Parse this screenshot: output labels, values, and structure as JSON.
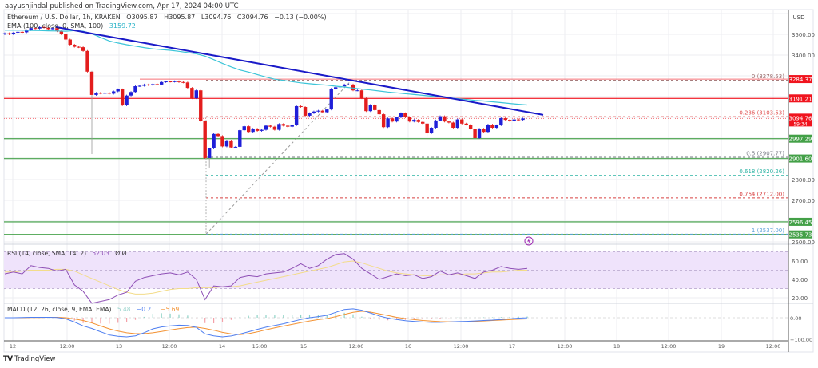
{
  "header": {
    "published": "aayushjindal published on TradingView.com, Apr 17, 2024 04:00 UTC"
  },
  "legend": {
    "symbol": "Ethereum / U.S. Dollar, 1h, KRAKEN",
    "open": "O3095.87",
    "high": "H3095.87",
    "low": "L3094.76",
    "close": "C3094.76",
    "change": "−0.13 (−0.00%)",
    "ema_label": "EMA (100, close, 0, SMA, 100)",
    "ema_value": "3159.72",
    "rsi_label": "RSI (14, close, SMA, 14, 2)",
    "rsi_value": "52.03",
    "rsi_extra": "Ø Ø",
    "macd_label": "MACD (12, 26, close, 9, EMA, EMA)",
    "macd_hist": "5.48",
    "macd_value": "−0.21",
    "macd_signal": "−5.69"
  },
  "footer": {
    "brand": "TradingView",
    "logo": "TV"
  },
  "colors": {
    "up": "#1f1fd8",
    "down": "#e31d1d",
    "trendline": "#1a1ac8",
    "ema": "#3cc5d8",
    "rsi": "#8e4fb5",
    "rsi_sma": "#f3dc8a",
    "macd": "#4f7ff0",
    "signal": "#f39233",
    "badge_red": "#f0141e",
    "badge_green": "#43a047"
  },
  "chart_data": {
    "type": "candlestick",
    "symbol": "ETHUSD",
    "interval": "1h",
    "currency": "USD",
    "price_axis": {
      "ticks": [
        "3500.00",
        "3400.00",
        "2800.00",
        "2700.00",
        "2500.00"
      ],
      "tick_values": [
        3500,
        3400,
        2800,
        2700,
        2500
      ],
      "range": [
        2480,
        3620
      ]
    },
    "time_axis": {
      "ticks": [
        "12",
        "12:00",
        "13",
        "12:00",
        "14",
        "15:00",
        "15",
        "12:00",
        "16",
        "12:00",
        "17",
        "12:00",
        "18",
        "12:00",
        "19",
        "12:00"
      ]
    },
    "first_open": 3500,
    "closes": [
      3505,
      3500,
      3508,
      3512,
      3510,
      3520,
      3530,
      3528,
      3535,
      3532,
      3525,
      3530,
      3515,
      3500,
      3475,
      3450,
      3440,
      3438,
      3420,
      3320,
      3208,
      3218,
      3215,
      3218,
      3214,
      3225,
      3235,
      3158,
      3205,
      3222,
      3250,
      3252,
      3258,
      3255,
      3260,
      3258,
      3270,
      3273,
      3272,
      3274,
      3270,
      3268,
      3242,
      3192,
      3230,
      3081,
      2904,
      2950,
      3020,
      3010,
      2960,
      2985,
      2955,
      2958,
      3038,
      3057,
      3030,
      3045,
      3035,
      3040,
      3060,
      3055,
      3040,
      3068,
      3060,
      3055,
      3062,
      3154,
      3150,
      3108,
      3120,
      3128,
      3132,
      3125,
      3138,
      3238,
      3245,
      3250,
      3258,
      3258,
      3230,
      3230,
      3192,
      3130,
      3160,
      3135,
      3115,
      3053,
      3095,
      3080,
      3100,
      3120,
      3100,
      3080,
      3088,
      3078,
      3070,
      3023,
      3050,
      3085,
      3105,
      3080,
      3075,
      3050,
      3090,
      3070,
      3065,
      3045,
      3000,
      3045,
      3030,
      3065,
      3050,
      3062,
      3096,
      3088,
      3082,
      3090,
      3088,
      3094.76
    ],
    "low_overrides": {
      "20": 2923,
      "47": 2858,
      "97": 3010,
      "108": 2990
    },
    "ema100": [
      3520,
      3520,
      3520,
      3519,
      3518,
      3517,
      3516,
      3515,
      3518,
      3515,
      3503,
      3485,
      3468,
      3458,
      3450,
      3443,
      3436,
      3430,
      3426,
      3423,
      3418,
      3412,
      3406,
      3395,
      3378,
      3360,
      3343,
      3328,
      3318,
      3306,
      3294,
      3284,
      3278,
      3272,
      3266,
      3262,
      3258,
      3255,
      3250,
      3246,
      3241,
      3236,
      3232,
      3227,
      3222,
      3218,
      3214,
      3210,
      3206,
      3202,
      3198,
      3194,
      3190,
      3186,
      3182,
      3179,
      3175,
      3171,
      3167,
      3163,
      3159.72
    ],
    "trendline": [
      3535,
      3112
    ],
    "levels": [
      {
        "price": 3284.37,
        "label": "3284.37",
        "kind": "red",
        "partial": true
      },
      {
        "price": 3191.21,
        "label": "3191.21",
        "kind": "red"
      },
      {
        "price": 2997.29,
        "label": "2997.29",
        "kind": "green"
      },
      {
        "price": 2901.6,
        "label": "2901.60",
        "kind": "green"
      },
      {
        "price": 2596.45,
        "label": "2596.45",
        "kind": "green"
      },
      {
        "price": 2535.73,
        "label": "2535.73",
        "kind": "green"
      }
    ],
    "last_price": {
      "price": 3094.76,
      "label": "3094.76",
      "countdown": "59:34"
    },
    "fib": [
      {
        "level": "0",
        "price": 3278.53,
        "label": "0 (3278.53)",
        "color": "#9a6a6a"
      },
      {
        "level": "0.236",
        "price": 3103.53,
        "label": "0.236 (3103.53)",
        "color": "#e05050"
      },
      {
        "level": "0.5",
        "price": 2907.77,
        "label": "0.5 (2907.77)",
        "color": "#787b86"
      },
      {
        "level": "0.618",
        "price": 2820.26,
        "label": "0.618 (2820.26)",
        "color": "#2bb3a3"
      },
      {
        "level": "0.764",
        "price": 2712.0,
        "label": "0.764 (2712.00)",
        "color": "#d84040"
      },
      {
        "level": "1",
        "price": 2537.0,
        "label": "1 (2537.00)",
        "color": "#5aa0d8"
      }
    ],
    "rsi": {
      "axis_ticks": [
        "60.00",
        "40.00",
        "20.00"
      ],
      "tick_values": [
        60,
        40,
        20
      ],
      "band": [
        30,
        70
      ],
      "values": [
        46,
        48,
        46,
        55,
        53,
        52,
        49,
        51,
        34,
        27,
        14,
        16,
        18,
        23,
        26,
        38,
        42,
        44,
        46,
        47,
        45,
        48,
        40,
        18,
        33,
        32,
        33,
        42,
        44,
        43,
        46,
        47,
        48,
        52,
        57,
        52,
        55,
        62,
        67,
        68,
        62,
        52,
        46,
        40,
        43,
        46,
        44,
        45,
        41,
        43,
        49,
        45,
        47,
        44,
        41,
        48,
        50,
        54,
        52,
        51,
        52.03
      ],
      "sma": [
        48,
        48,
        49,
        50,
        50,
        50,
        51,
        51,
        49,
        45,
        41,
        37,
        33,
        29,
        26,
        24,
        24,
        25,
        27,
        29,
        30,
        30,
        31,
        31,
        31,
        32,
        32,
        33,
        35,
        37,
        39,
        41,
        43,
        45,
        47,
        49,
        51,
        53,
        56,
        59,
        60,
        58,
        55,
        52,
        49,
        47,
        46,
        45,
        44,
        44,
        45,
        45,
        45,
        46,
        46,
        47,
        48,
        48,
        49,
        50,
        50
      ]
    },
    "macd": {
      "axis_ticks": [
        "0.00",
        "−100.00"
      ],
      "tick_values": [
        0,
        -100
      ],
      "macd": [
        0,
        0,
        1,
        2,
        2,
        2,
        1,
        -5,
        -20,
        -38,
        -50,
        -65,
        -80,
        -86,
        -89,
        -84,
        -70,
        -52,
        -43,
        -38,
        -35,
        -36,
        -45,
        -75,
        -84,
        -89,
        -85,
        -76,
        -65,
        -54,
        -44,
        -36,
        -28,
        -18,
        -8,
        0,
        5,
        11,
        25,
        38,
        41,
        35,
        22,
        8,
        -2,
        -8,
        -14,
        -17,
        -20,
        -22,
        -22,
        -20,
        -18,
        -17,
        -15,
        -13,
        -11,
        -8,
        -5,
        -2,
        -0.21
      ],
      "signal": [
        0,
        0,
        0,
        1,
        1,
        2,
        2,
        0,
        -6,
        -13,
        -24,
        -38,
        -52,
        -62,
        -70,
        -74,
        -74,
        -70,
        -64,
        -57,
        -51,
        -46,
        -44,
        -50,
        -58,
        -68,
        -75,
        -79,
        -74,
        -66,
        -56,
        -47,
        -39,
        -31,
        -23,
        -15,
        -9,
        -4,
        5,
        15,
        25,
        30,
        26,
        18,
        10,
        2,
        -4,
        -9,
        -13,
        -16,
        -18,
        -19,
        -19,
        -18,
        -17,
        -15,
        -13,
        -11,
        -9,
        -7,
        -5.69
      ]
    }
  }
}
